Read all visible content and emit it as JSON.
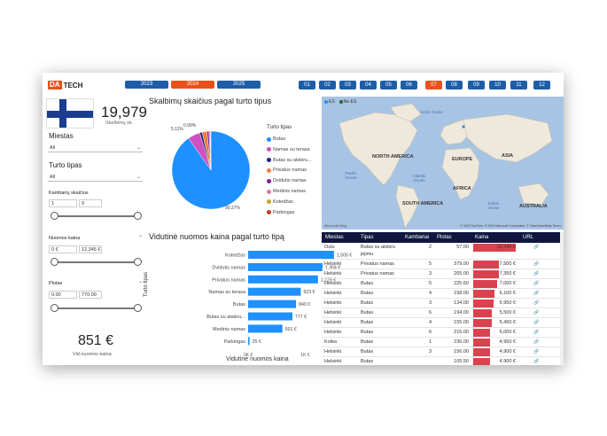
{
  "logo": {
    "part1": "DA",
    "part2": "TECH"
  },
  "years": [
    "2023",
    "2024",
    "2025"
  ],
  "active_year": "2024",
  "months": [
    "01",
    "02",
    "03",
    "04",
    "05",
    "06",
    "07",
    "08",
    "09",
    "10",
    "11",
    "12"
  ],
  "active_month": "07",
  "kpi_count": {
    "value": "19,979",
    "label": "Skelbimų sk."
  },
  "filters": {
    "city": {
      "label": "Miestas",
      "value": "All"
    },
    "type": {
      "label": "Turto tipas",
      "value": "All"
    },
    "rooms": {
      "label": "Kambarių skaičius",
      "min": "1",
      "max": "9"
    },
    "rent": {
      "label": "Nuomos kaina",
      "min": "0 €",
      "max": "12,345 €"
    },
    "area": {
      "label": "Plotas",
      "min": "0.00",
      "max": "770.00"
    }
  },
  "kpi_price": {
    "value": "851 €",
    "label": "Vid.nuomos kaina"
  },
  "pie": {
    "title": "Skalbimų skaičius pagal turto tipus",
    "legend_title": "Turto tipas",
    "labels_text": {
      "big": "90.27%",
      "mid": "5.11%",
      "small": "0.99%"
    }
  },
  "bar": {
    "title": "Vidutinė nuomos kaina pagal turto tipą",
    "xlabel": "Vidutinė nuomos kaina",
    "ylabel": "Turto tipas",
    "tick0": "0K €",
    "tick1": "1K €"
  },
  "map": {
    "legend": [
      "ES",
      "Ne-ES"
    ],
    "continents": {
      "north_america": "NORTH AMERICA",
      "south_america": "SOUTH AMERICA",
      "europe": "EUROPE",
      "asia": "ASIA",
      "africa": "AFRICA",
      "australia": "AUSTRALIA"
    },
    "oceans": {
      "arctic": "Arctic Ocean",
      "pacific": "Pacific Ocean",
      "atlantic": "Atlantic Ocean",
      "indian": "Indian Ocean"
    },
    "brand": "Microsoft Bing",
    "attribution": "© 2025 TomTom, © 2025 Microsoft Corporation, © OpenStreetMap  Terms"
  },
  "table": {
    "headers": [
      "Miestas",
      "Tipas",
      "Kambariai",
      "Plotas",
      "Kaina",
      "URL"
    ],
    "rows": [
      {
        "city": "Oulu",
        "type": "Butas su atskiru",
        "type2": "įėjimu",
        "rooms": "2",
        "area": "57.00",
        "price": "12,345 €",
        "v": 12345
      },
      {
        "city": "Helsinki",
        "type": "Privatus namas",
        "rooms": "5",
        "area": "379.00",
        "price": "7,500 €",
        "v": 7500
      },
      {
        "city": "Helsinki",
        "type": "Privatus namas",
        "rooms": "3",
        "area": "265.00",
        "price": "7,350 €",
        "v": 7350
      },
      {
        "city": "Helsinki",
        "type": "Butas",
        "rooms": "5",
        "area": "225.60",
        "price": "7,000 €",
        "v": 7000
      },
      {
        "city": "Helsinki",
        "type": "Butas",
        "rooms": "4",
        "area": "158.00",
        "price": "6,100 €",
        "v": 6100
      },
      {
        "city": "Helsinki",
        "type": "Butas",
        "rooms": "3",
        "area": "134.00",
        "price": "5,950 €",
        "v": 5950
      },
      {
        "city": "Helsinki",
        "type": "Butas",
        "rooms": "6",
        "area": "194.00",
        "price": "5,500 €",
        "v": 5500
      },
      {
        "city": "Helsinki",
        "type": "Butas",
        "rooms": "4",
        "area": "155.00",
        "price": "5,490 €",
        "v": 5490
      },
      {
        "city": "Helsinki",
        "type": "Butas",
        "rooms": "6",
        "area": "216.00",
        "price": "5,000 €",
        "v": 5000
      },
      {
        "city": "Kotka",
        "type": "Butas",
        "rooms": "1",
        "area": "236.00",
        "price": "4,950 €",
        "v": 4950
      },
      {
        "city": "Helsinki",
        "type": "Butas",
        "rooms": "3",
        "area": "156.00",
        "price": "4,900 €",
        "v": 4900
      },
      {
        "city": "Helsinki",
        "type": "Butas",
        "rooms": "",
        "area": "105.50",
        "price": "4,900 €",
        "v": 4900
      }
    ]
  },
  "colors": {
    "accent": "#e8521a",
    "primary": "#1e5ea8",
    "bar": "#1e90ff",
    "price_bar": "#d9434f",
    "header": "#10163e"
  },
  "chart_data": [
    {
      "type": "pie",
      "title": "Skalbimų skaičius pagal turto tipus",
      "legend_title": "Turto tipas",
      "slices": [
        {
          "name": "Butas",
          "value": 90.27,
          "color": "#1e90ff"
        },
        {
          "name": "Namas su terasa",
          "value": 5.11,
          "color": "#d04fc0"
        },
        {
          "name": "Butas su atskiru...",
          "value": 0.99,
          "color": "#1a237e"
        },
        {
          "name": "Privatus namas",
          "value": 2.0,
          "color": "#f07e3c"
        },
        {
          "name": "Dvidutis namas",
          "value": 0.8,
          "color": "#7b1fa2"
        },
        {
          "name": "Medinis namas",
          "value": 0.5,
          "color": "#e07aa0"
        },
        {
          "name": "Kotedžas",
          "value": 0.2,
          "color": "#c9a227"
        },
        {
          "name": "Parkingas",
          "value": 0.13,
          "color": "#c0392b"
        }
      ]
    },
    {
      "type": "bar",
      "orientation": "horizontal",
      "title": "Vidutinė nuomos kaina pagal turto tipą",
      "xlabel": "Vidutinė nuomos kaina",
      "ylabel": "Turto tipas",
      "categories": [
        "Kotedžas",
        "Dvidutis namas",
        "Privatus namas",
        "Namas su terasa",
        "Butas",
        "Butas su atskiru...",
        "Medinis namas",
        "Parkingas"
      ],
      "values": [
        1505,
        1304,
        1225,
        923,
        840,
        777,
        601,
        25
      ],
      "value_labels": [
        "1,505 €",
        "1,304 €",
        "1,225 €",
        "923 €",
        "840 €",
        "777 €",
        "601 €",
        "25 €"
      ],
      "xlim": [
        0,
        1600
      ]
    }
  ]
}
